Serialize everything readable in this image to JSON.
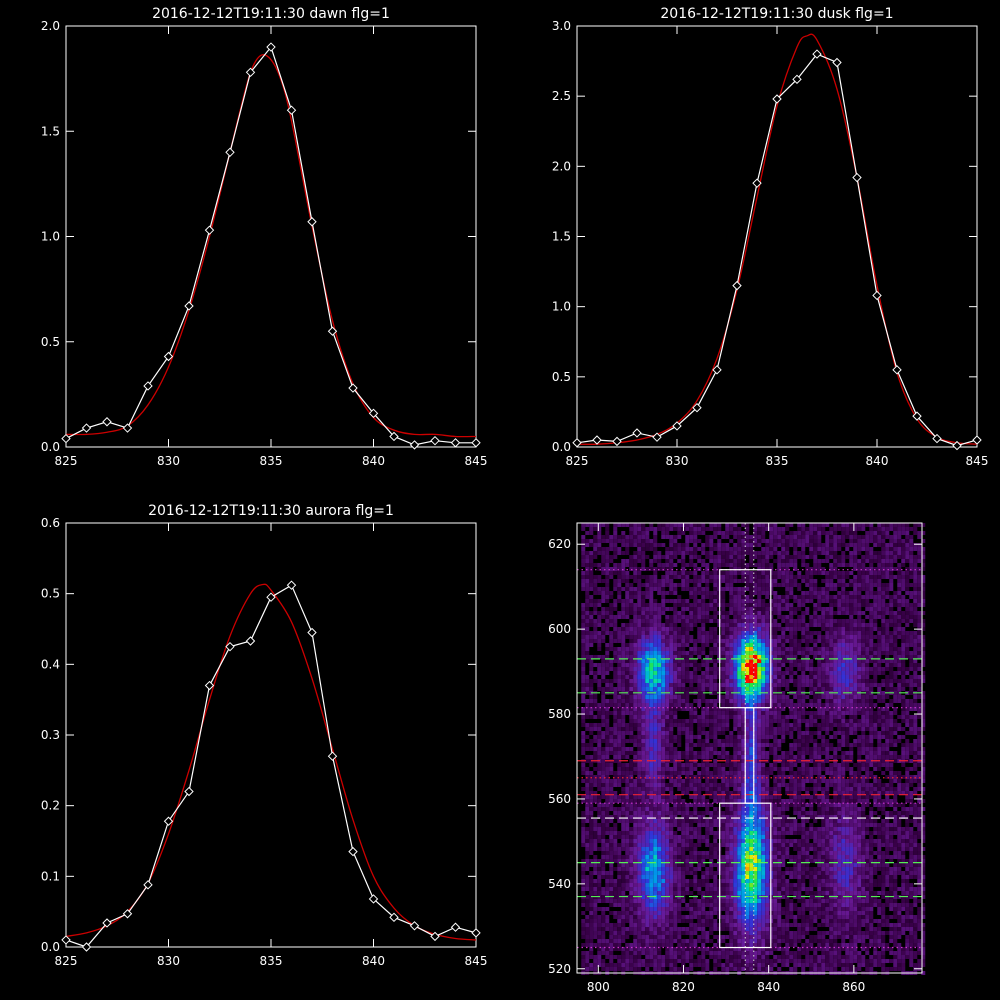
{
  "colors": {
    "background": "#000000",
    "axes": "#ffffff",
    "data_line": "#ffffff",
    "fit_line": "#cc0000",
    "guide_white": "#ffffff",
    "guide_green": "#55ee55",
    "guide_red": "#ee2233",
    "guide_magenta": "#cc33cc"
  },
  "chart_data": [
    {
      "type": "line",
      "title": "2016-12-12T19:11:30 dawn flg=1",
      "xlim": [
        825,
        845
      ],
      "ylim": [
        0,
        2.0
      ],
      "x_ticks": [
        "825",
        "830",
        "835",
        "840",
        "845"
      ],
      "y_ticks": [
        "0.0",
        "0.5",
        "1.0",
        "1.5",
        "2.0"
      ],
      "series": [
        {
          "marker": "diamond",
          "x": [
            825,
            826,
            827,
            828,
            829,
            830,
            831,
            832,
            833,
            834,
            835,
            836,
            837,
            838,
            839,
            840,
            841,
            842,
            843,
            844,
            845
          ],
          "y": [
            0.04,
            0.09,
            0.12,
            0.09,
            0.29,
            0.43,
            0.67,
            1.03,
            1.4,
            1.78,
            1.9,
            1.6,
            1.07,
            0.55,
            0.28,
            0.16,
            0.05,
            0.01,
            0.03,
            0.02,
            0.02
          ]
        },
        {
          "fit": "gaussian",
          "x": [
            825,
            826,
            827,
            828,
            829,
            830,
            831,
            832,
            833,
            833.5,
            834,
            834.5,
            835,
            835.5,
            836,
            837,
            838,
            839,
            840,
            841,
            842,
            843,
            844,
            845
          ],
          "y": [
            0.06,
            0.06,
            0.07,
            0.1,
            0.2,
            0.38,
            0.65,
            1.0,
            1.4,
            1.6,
            1.78,
            1.86,
            1.84,
            1.74,
            1.55,
            1.05,
            0.6,
            0.3,
            0.14,
            0.08,
            0.06,
            0.06,
            0.05,
            0.05
          ]
        }
      ]
    },
    {
      "type": "line",
      "title": "2016-12-12T19:11:30 dusk flg=1",
      "xlim": [
        825,
        845
      ],
      "ylim": [
        0,
        3.0
      ],
      "x_ticks": [
        "825",
        "830",
        "835",
        "840",
        "845"
      ],
      "y_ticks": [
        "0.0",
        "0.5",
        "1.0",
        "1.5",
        "2.0",
        "2.5",
        "3.0"
      ],
      "series": [
        {
          "marker": "diamond",
          "x": [
            825,
            826,
            827,
            828,
            829,
            830,
            831,
            832,
            833,
            834,
            835,
            836,
            837,
            838,
            839,
            840,
            841,
            842,
            843,
            844,
            845
          ],
          "y": [
            0.03,
            0.05,
            0.04,
            0.1,
            0.07,
            0.15,
            0.28,
            0.55,
            1.15,
            1.88,
            2.48,
            2.62,
            2.8,
            2.74,
            1.92,
            1.08,
            0.55,
            0.22,
            0.06,
            0.01,
            0.05
          ]
        },
        {
          "fit": "gaussian",
          "x": [
            825,
            826,
            827,
            828,
            829,
            830,
            831,
            832,
            833,
            834,
            835,
            836,
            836.5,
            837,
            838,
            839,
            840,
            841,
            842,
            843,
            844,
            845
          ],
          "y": [
            0.02,
            0.02,
            0.03,
            0.05,
            0.09,
            0.17,
            0.33,
            0.63,
            1.12,
            1.78,
            2.43,
            2.85,
            2.93,
            2.9,
            2.55,
            1.92,
            1.15,
            0.53,
            0.2,
            0.07,
            0.03,
            0.02
          ]
        }
      ]
    },
    {
      "type": "line",
      "title": "2016-12-12T19:11:30 aurora flg=1",
      "xlim": [
        825,
        845
      ],
      "ylim": [
        0,
        0.6
      ],
      "x_ticks": [
        "825",
        "830",
        "835",
        "840",
        "845"
      ],
      "y_ticks": [
        "0.0",
        "0.1",
        "0.2",
        "0.3",
        "0.4",
        "0.5",
        "0.6"
      ],
      "series": [
        {
          "marker": "diamond",
          "x": [
            825,
            826,
            827,
            828,
            829,
            830,
            831,
            832,
            833,
            834,
            835,
            836,
            837,
            838,
            839,
            840,
            841,
            842,
            843,
            844,
            845
          ],
          "y": [
            0.01,
            0.0,
            0.034,
            0.047,
            0.088,
            0.178,
            0.22,
            0.37,
            0.425,
            0.433,
            0.495,
            0.512,
            0.445,
            0.27,
            0.135,
            0.068,
            0.042,
            0.03,
            0.015,
            0.028,
            0.02
          ]
        },
        {
          "fit": "gaussian",
          "x": [
            825,
            826,
            827,
            828,
            829,
            830,
            831,
            832,
            833,
            834,
            834.6,
            835,
            836,
            837,
            838,
            839,
            840,
            841,
            842,
            843,
            844,
            845
          ],
          "y": [
            0.015,
            0.02,
            0.03,
            0.05,
            0.09,
            0.16,
            0.25,
            0.35,
            0.44,
            0.5,
            0.513,
            0.505,
            0.46,
            0.38,
            0.28,
            0.18,
            0.1,
            0.055,
            0.03,
            0.018,
            0.012,
            0.01
          ]
        }
      ]
    },
    {
      "type": "heatmap",
      "xlim": [
        795,
        876
      ],
      "ylim": [
        519,
        625
      ],
      "x_ticks": [
        "800",
        "820",
        "840",
        "860"
      ],
      "y_ticks": [
        "520",
        "540",
        "560",
        "580",
        "600",
        "620"
      ],
      "blobs": [
        {
          "x": 813,
          "y": 590,
          "sx": 2.5,
          "sy": 5,
          "amp": 0.55
        },
        {
          "x": 813,
          "y": 543,
          "sx": 2.5,
          "sy": 7,
          "amp": 0.45
        },
        {
          "x": 813,
          "y": 572,
          "sx": 1.5,
          "sy": 7,
          "amp": 0.2
        },
        {
          "x": 836,
          "y": 591,
          "sx": 2.5,
          "sy": 5,
          "amp": 1.0
        },
        {
          "x": 836,
          "y": 544,
          "sx": 2.5,
          "sy": 9,
          "amp": 0.7
        },
        {
          "x": 836,
          "y": 568,
          "sx": 1.2,
          "sy": 10,
          "amp": 0.25
        },
        {
          "x": 858,
          "y": 590,
          "sx": 2.5,
          "sy": 5,
          "amp": 0.22
        },
        {
          "x": 858,
          "y": 545,
          "sx": 2.5,
          "sy": 8,
          "amp": 0.18
        }
      ],
      "boxes": [
        {
          "x0": 828.5,
          "x1": 840.5,
          "y0": 581.5,
          "y1": 614
        },
        {
          "x0": 828.5,
          "x1": 840.5,
          "y0": 525,
          "y1": 559
        }
      ],
      "inner_box": {
        "x0": 834.5,
        "x1": 836.5,
        "y0": 559,
        "y1": 581.5
      },
      "vlines_dotted": [
        834.5,
        836.5
      ],
      "hlines": [
        {
          "y": 614,
          "style": "dotted",
          "color": "guide_magenta"
        },
        {
          "y": 593,
          "style": "dashed",
          "color": "guide_green"
        },
        {
          "y": 585,
          "style": "dashed",
          "color": "guide_green"
        },
        {
          "y": 581.5,
          "style": "dotted",
          "color": "guide_magenta"
        },
        {
          "y": 569,
          "style": "dashed",
          "color": "guide_red"
        },
        {
          "y": 565,
          "style": "dotted",
          "color": "guide_red"
        },
        {
          "y": 561,
          "style": "dashed",
          "color": "guide_red"
        },
        {
          "y": 559,
          "style": "dotted",
          "color": "guide_magenta"
        },
        {
          "y": 555.5,
          "style": "dashed",
          "color": "guide_white"
        },
        {
          "y": 545,
          "style": "dashed",
          "color": "guide_green"
        },
        {
          "y": 537,
          "style": "dashed",
          "color": "guide_green"
        },
        {
          "y": 525,
          "style": "dotted",
          "color": "guide_magenta"
        }
      ]
    }
  ]
}
